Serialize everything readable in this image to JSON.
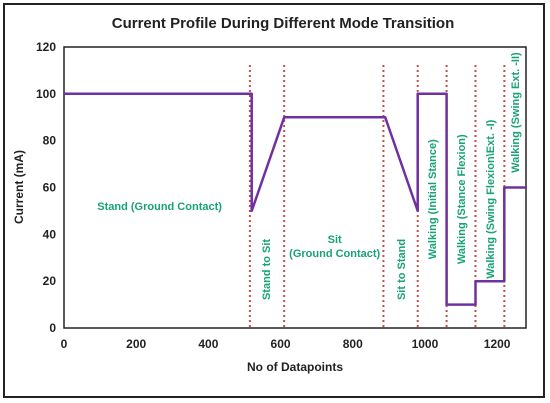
{
  "chart_data": {
    "type": "line",
    "title": "Current Profile During Different Mode Transition",
    "xlabel": "No of Datapoints",
    "ylabel": "Current (mA)",
    "xlim": [
      0,
      1280
    ],
    "ylim": [
      0,
      120
    ],
    "xticks": [
      0,
      200,
      400,
      600,
      800,
      1000,
      1200
    ],
    "yticks": [
      0,
      20,
      40,
      60,
      80,
      100,
      120
    ],
    "series": [
      {
        "color": "#7030a0",
        "x": [
          0,
          520,
          520,
          610,
          890,
          980,
          980,
          1060,
          1060,
          1140,
          1140,
          1220,
          1220,
          1280
        ],
        "y": [
          100,
          100,
          50,
          90,
          90,
          50,
          100,
          100,
          10,
          10,
          20,
          20,
          60,
          60
        ]
      }
    ],
    "mode_boundaries": {
      "color": "#c0504d",
      "x": [
        515,
        610,
        885,
        980,
        1060,
        1140,
        1220
      ]
    },
    "annotation_color": "#18a374",
    "annotations": [
      {
        "id": "stand",
        "lines": [
          "Stand (Ground Contact)"
        ],
        "orientation": "horizontal",
        "x": 265,
        "y": 52
      },
      {
        "id": "stand-to-sit",
        "lines": [
          "Stand to Sit"
        ],
        "orientation": "vertical",
        "x": 560,
        "y": 25
      },
      {
        "id": "sit",
        "lines": [
          "Sit",
          "(Ground Contact)"
        ],
        "orientation": "horizontal",
        "x": 750,
        "y": 35
      },
      {
        "id": "sit-to-stand",
        "lines": [
          "Sit to Stand"
        ],
        "orientation": "vertical",
        "x": 933,
        "y": 25
      },
      {
        "id": "walking-initial-stance",
        "lines": [
          "Walking (Initial Stance)"
        ],
        "orientation": "vertical",
        "x": 1020,
        "y": 55
      },
      {
        "id": "walking-stance-flexion",
        "lines": [
          "Walking (Stance Flexion)"
        ],
        "orientation": "vertical",
        "x": 1100,
        "y": 55
      },
      {
        "id": "walking-swing-flexion",
        "lines": [
          "Walking (Swing Flexion\\Ext. -I)"
        ],
        "orientation": "vertical",
        "x": 1180,
        "y": 55
      },
      {
        "id": "walking-swing-ext",
        "lines": [
          "Walking (Swing Ext. -II)"
        ],
        "orientation": "vertical",
        "x": 1250,
        "y": 92
      }
    ],
    "grid": false,
    "legend": "none"
  }
}
